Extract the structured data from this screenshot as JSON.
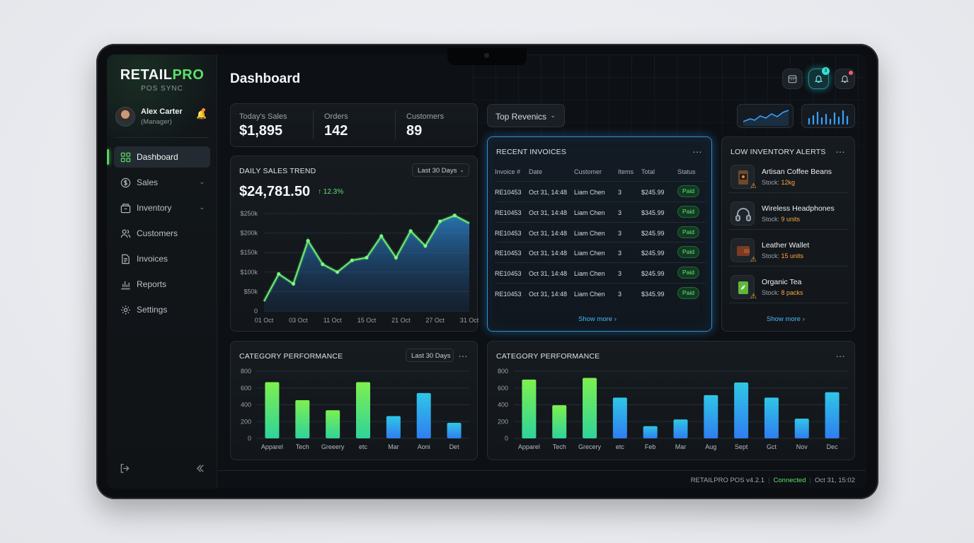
{
  "brand": {
    "name_part1": "RETAIL",
    "name_part2": "PRO",
    "subtitle": "POS SYNC"
  },
  "user": {
    "name": "Alex Carter",
    "role": "(Manager)"
  },
  "nav": [
    {
      "label": "Dashboard",
      "icon": "grid-icon",
      "active": true
    },
    {
      "label": "Sales",
      "icon": "dollar-icon",
      "expandable": true
    },
    {
      "label": "Inventory",
      "icon": "box-icon",
      "expandable": true
    },
    {
      "label": "Customers",
      "icon": "users-icon"
    },
    {
      "label": "Invoices",
      "icon": "document-icon"
    },
    {
      "label": "Reports",
      "icon": "bar-chart-icon"
    },
    {
      "label": "Settings",
      "icon": "gear-icon"
    }
  ],
  "header": {
    "title": "Dashboard",
    "notification_count": "3"
  },
  "kpis": [
    {
      "label": "Today's Sales",
      "value": "$1,895"
    },
    {
      "label": "Orders",
      "value": "142"
    },
    {
      "label": "Customers",
      "value": "89"
    }
  ],
  "top_dropdown": {
    "label": "Top Revenics"
  },
  "sales_trend": {
    "title": "DAILY SALES TREND",
    "range": "Last 30 Days",
    "total": "$24,781.50",
    "change": "↑ 12.3%"
  },
  "invoices": {
    "title": "RECENT INVOICES",
    "columns": [
      "Invoice #",
      "Date",
      "Customer",
      "Items",
      "Total",
      "Status"
    ],
    "rows": [
      [
        "RE10453",
        "Oct 31, 14:48",
        "Liam Chen",
        "3",
        "$245.99",
        "Paid"
      ],
      [
        "RE10453",
        "Oct 31, 14:48",
        "Liam Chen",
        "3",
        "$345.99",
        "Paid"
      ],
      [
        "RE10453",
        "Oct 31, 14:48",
        "Liam Chen",
        "3",
        "$245.99",
        "Paid"
      ],
      [
        "RE10453",
        "Oct 31, 14:48",
        "Liam Chen",
        "3",
        "$245.99",
        "Paid"
      ],
      [
        "RE10453",
        "Oct 31, 14:48",
        "Liam Chen",
        "3",
        "$245.99",
        "Paid"
      ],
      [
        "RE10453",
        "Oct 31, 14:48",
        "Liam Chen",
        "3",
        "$345.99",
        "Paid"
      ]
    ],
    "show_more": "Show more"
  },
  "low_inventory": {
    "title": "LOW INVENTORY ALERTS",
    "items": [
      {
        "name": "Artisan Coffee Beans",
        "stock_label": "Stock: ",
        "stock_value": "12kg",
        "warning": true
      },
      {
        "name": "Wireless Headphones",
        "stock_label": "Stock: ",
        "stock_value": "9 units",
        "warning": false
      },
      {
        "name": "Leather Wallet",
        "stock_label": "Stock: ",
        "stock_value": "15 units",
        "warning": true
      },
      {
        "name": "Organic Tea",
        "stock_label": "Stock: ",
        "stock_value": "8 packs",
        "warning": true
      }
    ],
    "show_more": "Show more"
  },
  "category_left": {
    "title": "CATEGORY PERFORMANCE",
    "range": "Last 30 Days"
  },
  "category_right": {
    "title": "CATEGORY PERFORMANCE"
  },
  "footer": {
    "version": "RETAILPRO POS v4.2.1",
    "status": "Connected",
    "datetime": "Oct 31, 15:02"
  },
  "colors": {
    "accent_green": "#5fe06a",
    "accent_blue": "#3aa0ff",
    "accent_cyan": "#2fd3d8",
    "warning": "#ffa53a"
  },
  "chart_data": [
    {
      "type": "area",
      "title": "DAILY SALES TREND",
      "x_ticks": [
        "01 Oct",
        "03 Oct",
        "11 Oct",
        "15 Oct",
        "21 Oct",
        "27 Oct",
        "31 Oct"
      ],
      "y_ticks": [
        "0",
        "$50k",
        "$100k",
        "$150k",
        "$200k",
        "$250k"
      ],
      "ylim": [
        0,
        250000
      ],
      "x": [
        1,
        2,
        3,
        4,
        5,
        6,
        7,
        8,
        9,
        10,
        11,
        12,
        13,
        14,
        15
      ],
      "values": [
        25000,
        95000,
        70000,
        180000,
        120000,
        100000,
        130000,
        137000,
        192000,
        137000,
        205000,
        167000,
        230000,
        245000,
        225000
      ]
    },
    {
      "type": "bar",
      "title": "CATEGORY PERFORMANCE",
      "categories": [
        "Apparel",
        "Tech",
        "Greeery",
        "etc",
        "Mar",
        "Aoni",
        "Det"
      ],
      "values": [
        670,
        455,
        335,
        670,
        265,
        540,
        185
      ],
      "y_ticks": [
        "0",
        "200",
        "400",
        "600",
        "800"
      ],
      "ylim": [
        0,
        800
      ]
    },
    {
      "type": "bar",
      "title": "CATEGORY PERFORMANCE",
      "categories": [
        "Apparel",
        "Tech",
        "Grecery",
        "etc",
        "Feb",
        "Mar",
        "Aug",
        "Sept",
        "Gct",
        "Nov",
        "Dec"
      ],
      "values": [
        700,
        395,
        720,
        485,
        145,
        225,
        515,
        665,
        485,
        235,
        550
      ],
      "y_ticks": [
        "0",
        "200",
        "400",
        "600",
        "800"
      ],
      "ylim": [
        0,
        800
      ]
    }
  ]
}
